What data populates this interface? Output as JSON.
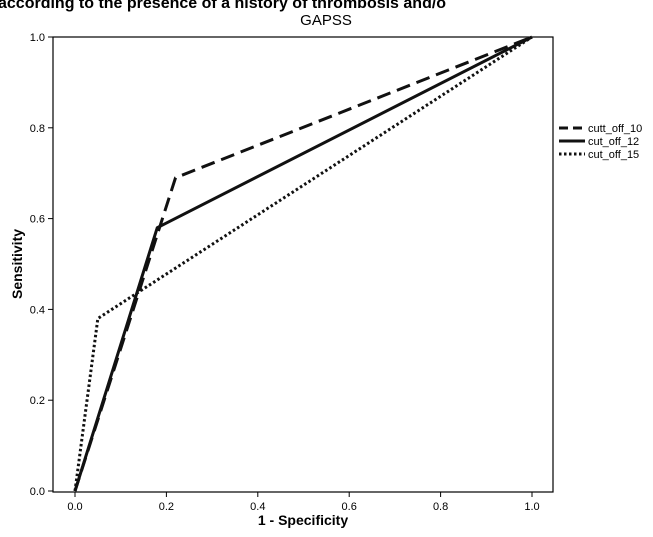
{
  "caption": "according to the presence of a history of thrombosis and/o",
  "chart_data": {
    "type": "line",
    "title": "GAPSS",
    "xlabel": "1 - Specificity",
    "ylabel": "Sensitivity",
    "xlim": [
      0,
      1
    ],
    "ylim": [
      0,
      1
    ],
    "xticks": [
      "0.0",
      "0.2",
      "0.4",
      "0.6",
      "0.8",
      "1.0"
    ],
    "yticks": [
      "0.0",
      "0.2",
      "0.4",
      "0.6",
      "0.8",
      "1.0"
    ],
    "grid": false,
    "legend_position": "right",
    "series": [
      {
        "name": "cutt_off_10",
        "dash": "dashed",
        "x": [
          0,
          0.22,
          1.0
        ],
        "y": [
          0,
          0.69,
          1.0
        ]
      },
      {
        "name": "cut_off_12",
        "dash": "solid",
        "x": [
          0,
          0.18,
          1.0
        ],
        "y": [
          0,
          0.58,
          1.0
        ]
      },
      {
        "name": "cut_off_15",
        "dash": "dotted",
        "x": [
          0,
          0.05,
          1.0
        ],
        "y": [
          0,
          0.38,
          1.0
        ]
      }
    ]
  }
}
